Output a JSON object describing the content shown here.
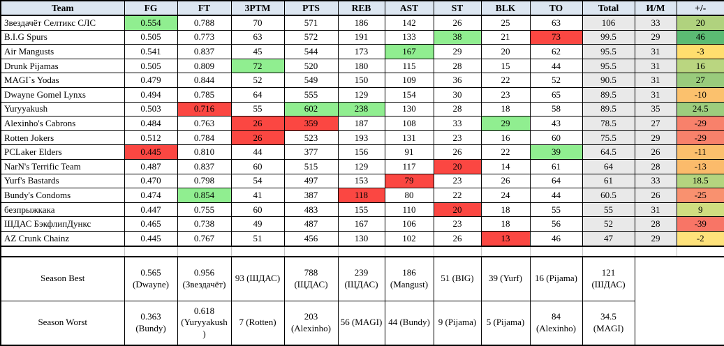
{
  "colors": {
    "header_bg": "#dce6f1",
    "gray_col_bg": "#e9e9e9",
    "best_green": "#90ee90",
    "worst_red": "#fb4742"
  },
  "table": {
    "columns": [
      "Team",
      "FG",
      "FT",
      "3PTM",
      "PTS",
      "REB",
      "AST",
      "ST",
      "BLK",
      "TO",
      "Total",
      "И/М",
      "+/-"
    ],
    "rows": [
      {
        "team": "Звездачёт Селтикс СЛС",
        "fg": "0.554",
        "ft": "0.788",
        "tpm": "70",
        "pts": "571",
        "reb": "186",
        "ast": "142",
        "st": "26",
        "blk": "25",
        "to": "63",
        "total": "106",
        "im": "33",
        "pm": "20",
        "pm_color": "#b0d27e",
        "hl": {
          "fg": "green"
        }
      },
      {
        "team": "B.I.G Spurs",
        "fg": "0.505",
        "ft": "0.773",
        "tpm": "63",
        "pts": "572",
        "reb": "191",
        "ast": "133",
        "st": "38",
        "blk": "21",
        "to": "73",
        "total": "99.5",
        "im": "29",
        "pm": "46",
        "pm_color": "#5bbb73",
        "hl": {
          "st": "green",
          "to": "red"
        }
      },
      {
        "team": "Air Mangusts",
        "fg": "0.541",
        "ft": "0.837",
        "tpm": "45",
        "pts": "544",
        "reb": "173",
        "ast": "167",
        "st": "29",
        "blk": "20",
        "to": "62",
        "total": "95.5",
        "im": "31",
        "pm": "-3",
        "pm_color": "#ffde6e",
        "hl": {
          "ast": "green"
        }
      },
      {
        "team": "Drunk Pijamas",
        "fg": "0.505",
        "ft": "0.809",
        "tpm": "72",
        "pts": "520",
        "reb": "180",
        "ast": "115",
        "st": "28",
        "blk": "15",
        "to": "44",
        "total": "95.5",
        "im": "31",
        "pm": "16",
        "pm_color": "#bad680",
        "hl": {
          "tpm": "green"
        }
      },
      {
        "team": "MAGI`s Yodas",
        "fg": "0.479",
        "ft": "0.844",
        "tpm": "52",
        "pts": "549",
        "reb": "150",
        "ast": "109",
        "st": "36",
        "blk": "22",
        "to": "52",
        "total": "90.5",
        "im": "31",
        "pm": "27",
        "pm_color": "#99cb7c",
        "hl": {}
      },
      {
        "team": "Dwayne Gomel Lynxs",
        "fg": "0.494",
        "ft": "0.785",
        "tpm": "64",
        "pts": "555",
        "reb": "129",
        "ast": "154",
        "st": "30",
        "blk": "23",
        "to": "65",
        "total": "89.5",
        "im": "31",
        "pm": "-10",
        "pm_color": "#fbc16d",
        "hl": {}
      },
      {
        "team": "Yuryyakush",
        "fg": "0.503",
        "ft": "0.716",
        "tpm": "55",
        "pts": "602",
        "reb": "238",
        "ast": "130",
        "st": "28",
        "blk": "18",
        "to": "58",
        "total": "89.5",
        "im": "35",
        "pm": "24.5",
        "pm_color": "#9dcd7d",
        "hl": {
          "ft": "red",
          "pts": "green",
          "reb": "green"
        }
      },
      {
        "team": "Alexinho's Cabrons",
        "fg": "0.484",
        "ft": "0.763",
        "tpm": "26",
        "pts": "359",
        "reb": "187",
        "ast": "108",
        "st": "33",
        "blk": "29",
        "to": "43",
        "total": "78.5",
        "im": "27",
        "pm": "-29",
        "pm_color": "#f8816b",
        "hl": {
          "tpm": "red",
          "pts": "red",
          "blk": "green"
        }
      },
      {
        "team": "Rotten Jokers",
        "fg": "0.512",
        "ft": "0.784",
        "tpm": "26",
        "pts": "523",
        "reb": "193",
        "ast": "131",
        "st": "23",
        "blk": "16",
        "to": "60",
        "total": "75.5",
        "im": "29",
        "pm": "-29",
        "pm_color": "#f8816b",
        "hl": {
          "tpm": "red"
        }
      },
      {
        "team": "PCLaker Elders",
        "fg": "0.445",
        "ft": "0.810",
        "tpm": "44",
        "pts": "377",
        "reb": "156",
        "ast": "91",
        "st": "26",
        "blk": "22",
        "to": "39",
        "total": "64.5",
        "im": "26",
        "pm": "-11",
        "pm_color": "#fbbf6c",
        "hl": {
          "fg": "red",
          "to": "green"
        }
      },
      {
        "team": "NarN's Terrific Team",
        "fg": "0.487",
        "ft": "0.837",
        "tpm": "60",
        "pts": "515",
        "reb": "129",
        "ast": "117",
        "st": "20",
        "blk": "14",
        "to": "61",
        "total": "64",
        "im": "28",
        "pm": "-13",
        "pm_color": "#fbbb6b",
        "hl": {
          "st": "red"
        }
      },
      {
        "team": "Yurf's Bastards",
        "fg": "0.470",
        "ft": "0.798",
        "tpm": "54",
        "pts": "497",
        "reb": "153",
        "ast": "79",
        "st": "23",
        "blk": "26",
        "to": "64",
        "total": "61",
        "im": "33",
        "pm": "18.5",
        "pm_color": "#b4d47f",
        "hl": {
          "ast": "red"
        }
      },
      {
        "team": "Bundy's Condoms",
        "fg": "0.474",
        "ft": "0.854",
        "tpm": "41",
        "pts": "387",
        "reb": "118",
        "ast": "80",
        "st": "22",
        "blk": "24",
        "to": "44",
        "total": "60.5",
        "im": "26",
        "pm": "-25",
        "pm_color": "#f9916f",
        "hl": {
          "ft": "green",
          "reb": "red"
        }
      },
      {
        "team": "безпрыжкака",
        "fg": "0.447",
        "ft": "0.755",
        "tpm": "60",
        "pts": "483",
        "reb": "155",
        "ast": "110",
        "st": "20",
        "blk": "18",
        "to": "55",
        "total": "55",
        "im": "31",
        "pm": "9",
        "pm_color": "#d0dd80",
        "hl": {
          "st": "red"
        }
      },
      {
        "team": "ШДАС БэкфлипДункс",
        "fg": "0.465",
        "ft": "0.738",
        "tpm": "49",
        "pts": "487",
        "reb": "167",
        "ast": "106",
        "st": "23",
        "blk": "18",
        "to": "56",
        "total": "52",
        "im": "28",
        "pm": "-39",
        "pm_color": "#f87566",
        "hl": {}
      },
      {
        "team": "AZ Crunk Chainz",
        "fg": "0.445",
        "ft": "0.767",
        "tpm": "51",
        "pts": "456",
        "reb": "130",
        "ast": "102",
        "st": "26",
        "blk": "13",
        "to": "46",
        "total": "47",
        "im": "29",
        "pm": "-2",
        "pm_color": "#fee27b",
        "hl": {
          "blk": "red"
        }
      }
    ]
  },
  "summary": {
    "rows": [
      {
        "label": "Season Best",
        "cells": [
          "0.565 (Dwayne)",
          "0.956 (Звездачёт)",
          "93 (ШДАС)",
          "788 (ЩДАС)",
          "239 (ЩДАС)",
          "186 (Mangust)",
          "51 (BIG)",
          "39 (Yurf)",
          "16 (Pijama)",
          "121 (ШДАС)"
        ]
      },
      {
        "label": "Season Worst",
        "cells": [
          "0.363 (Bundy)",
          "0.618 (Yuryyakush)",
          "7 (Rotten)",
          "203 (Alexinho)",
          "56 (MAGI)",
          "44 (Bundy)",
          "9 (Pijama)",
          "5 (Pijama)",
          "84 (Alexinho)",
          "34.5 (MAGI)"
        ]
      }
    ]
  }
}
